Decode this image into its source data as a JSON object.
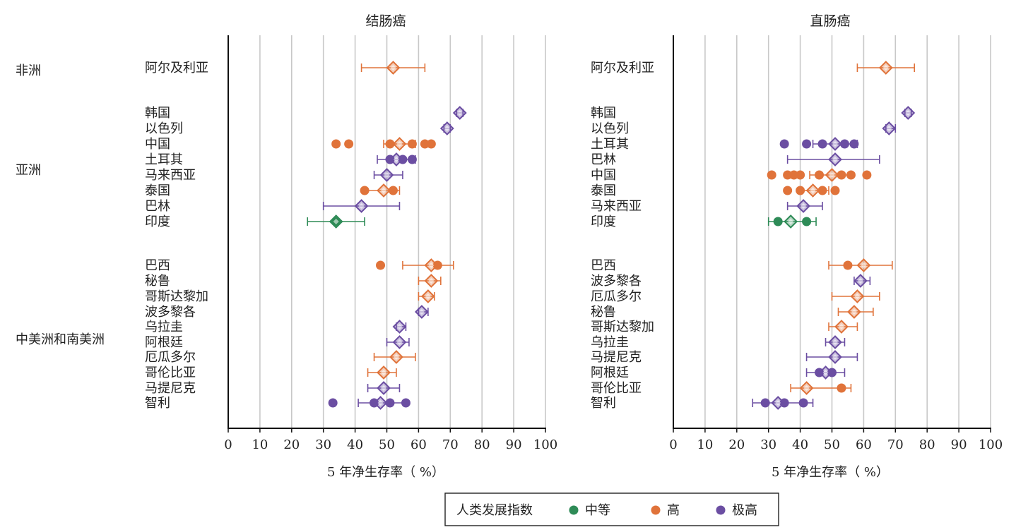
{
  "colors": {
    "中等": "#2e8b57",
    "高": "#e0733a",
    "极高": "#6b4ea2",
    "grid": "#c8c8c8",
    "axis": "#111111"
  },
  "regions": [
    "非洲",
    "亚洲",
    "中美洲和南美洲"
  ],
  "legend": {
    "title": "人类发展指数",
    "items": [
      "中等",
      "高",
      "极高"
    ]
  },
  "chart_data": [
    {
      "type": "scatter",
      "title": "结肠癌",
      "xlabel": "5 年净生存率（ %）",
      "xlim": [
        0,
        100
      ],
      "xticks": [
        0,
        10,
        20,
        30,
        40,
        50,
        60,
        70,
        80,
        90,
        100
      ],
      "rows": [
        {
          "region": "非洲",
          "label": "阿尔及利亚",
          "hdi": "高",
          "mean": 52,
          "lo": 42,
          "hi": 62,
          "dots": []
        },
        {
          "region": "亚洲",
          "label": "韩国",
          "hdi": "极高",
          "mean": 73,
          "lo": 72,
          "hi": 74,
          "dots": []
        },
        {
          "region": "亚洲",
          "label": "以色列",
          "hdi": "极高",
          "mean": 69,
          "lo": 68,
          "hi": 70,
          "dots": []
        },
        {
          "region": "亚洲",
          "label": "中国",
          "hdi": "高",
          "mean": 54,
          "lo": 49,
          "hi": 59,
          "dots": [
            34,
            38,
            51,
            58,
            62,
            64
          ]
        },
        {
          "region": "亚洲",
          "label": "土耳其",
          "hdi": "极高",
          "mean": 53,
          "lo": 47,
          "hi": 59,
          "dots": [
            51,
            55,
            58
          ]
        },
        {
          "region": "亚洲",
          "label": "马来西亚",
          "hdi": "极高",
          "mean": 50,
          "lo": 46,
          "hi": 55,
          "dots": []
        },
        {
          "region": "亚洲",
          "label": "泰国",
          "hdi": "高",
          "mean": 49,
          "lo": 43,
          "hi": 54,
          "dots": [
            43,
            52
          ]
        },
        {
          "region": "亚洲",
          "label": "巴林",
          "hdi": "极高",
          "mean": 42,
          "lo": 30,
          "hi": 54,
          "dots": []
        },
        {
          "region": "亚洲",
          "label": "印度",
          "hdi": "中等",
          "mean": 34,
          "lo": 25,
          "hi": 43,
          "dots": [
            34
          ]
        },
        {
          "region": "中美洲和南美洲",
          "label": "巴西",
          "hdi": "高",
          "mean": 64,
          "lo": 55,
          "hi": 71,
          "dots": [
            48,
            66
          ]
        },
        {
          "region": "中美洲和南美洲",
          "label": "秘鲁",
          "hdi": "高",
          "mean": 64,
          "lo": 60,
          "hi": 67,
          "dots": []
        },
        {
          "region": "中美洲和南美洲",
          "label": "哥斯达黎加",
          "hdi": "高",
          "mean": 63,
          "lo": 60,
          "hi": 65,
          "dots": []
        },
        {
          "region": "中美洲和南美洲",
          "label": "波多黎各",
          "hdi": "极高",
          "mean": 61,
          "lo": 60,
          "hi": 63,
          "dots": []
        },
        {
          "region": "中美洲和南美洲",
          "label": "乌拉圭",
          "hdi": "极高",
          "mean": 54,
          "lo": 53,
          "hi": 56,
          "dots": []
        },
        {
          "region": "中美洲和南美洲",
          "label": "阿根廷",
          "hdi": "极高",
          "mean": 54,
          "lo": 50,
          "hi": 57,
          "dots": []
        },
        {
          "region": "中美洲和南美洲",
          "label": "厄瓜多尔",
          "hdi": "高",
          "mean": 53,
          "lo": 46,
          "hi": 59,
          "dots": []
        },
        {
          "region": "中美洲和南美洲",
          "label": "哥伦比亚",
          "hdi": "高",
          "mean": 49,
          "lo": 44,
          "hi": 53,
          "dots": []
        },
        {
          "region": "中美洲和南美洲",
          "label": "马提尼克",
          "hdi": "极高",
          "mean": 49,
          "lo": 44,
          "hi": 54,
          "dots": []
        },
        {
          "region": "中美洲和南美洲",
          "label": "智利",
          "hdi": "极高",
          "mean": 48,
          "lo": 41,
          "hi": 56,
          "dots": [
            33,
            46,
            51,
            56
          ]
        }
      ]
    },
    {
      "type": "scatter",
      "title": "直肠癌",
      "xlabel": "5 年净生存率（ %）",
      "xlim": [
        0,
        100
      ],
      "xticks": [
        0,
        10,
        20,
        30,
        40,
        50,
        60,
        70,
        80,
        90,
        100
      ],
      "rows": [
        {
          "region": "非洲",
          "label": "阿尔及利亚",
          "hdi": "高",
          "mean": 67,
          "lo": 58,
          "hi": 76,
          "dots": []
        },
        {
          "region": "亚洲",
          "label": "韩国",
          "hdi": "极高",
          "mean": 74,
          "lo": 73,
          "hi": 75,
          "dots": []
        },
        {
          "region": "亚洲",
          "label": "以色列",
          "hdi": "极高",
          "mean": 68,
          "lo": 67,
          "hi": 70,
          "dots": []
        },
        {
          "region": "亚洲",
          "label": "土耳其",
          "hdi": "极高",
          "mean": 51,
          "lo": 44,
          "hi": 58,
          "dots": [
            35,
            42,
            47,
            54,
            57
          ]
        },
        {
          "region": "亚洲",
          "label": "巴林",
          "hdi": "极高",
          "mean": 51,
          "lo": 36,
          "hi": 65,
          "dots": []
        },
        {
          "region": "亚洲",
          "label": "中国",
          "hdi": "高",
          "mean": 50,
          "lo": 43,
          "hi": 56,
          "dots": [
            31,
            36,
            38,
            40,
            46,
            53,
            56,
            61
          ]
        },
        {
          "region": "亚洲",
          "label": "泰国",
          "hdi": "高",
          "mean": 44,
          "lo": 40,
          "hi": 49,
          "dots": [
            36,
            40,
            47,
            51
          ]
        },
        {
          "region": "亚洲",
          "label": "马来西亚",
          "hdi": "极高",
          "mean": 41,
          "lo": 36,
          "hi": 47,
          "dots": []
        },
        {
          "region": "亚洲",
          "label": "印度",
          "hdi": "中等",
          "mean": 37,
          "lo": 30,
          "hi": 45,
          "dots": [
            33,
            42
          ]
        },
        {
          "region": "中美洲和南美洲",
          "label": "巴西",
          "hdi": "高",
          "mean": 60,
          "lo": 49,
          "hi": 69,
          "dots": [
            55
          ]
        },
        {
          "region": "中美洲和南美洲",
          "label": "波多黎各",
          "hdi": "极高",
          "mean": 59,
          "lo": 57,
          "hi": 62,
          "dots": []
        },
        {
          "region": "中美洲和南美洲",
          "label": "厄瓜多尔",
          "hdi": "高",
          "mean": 58,
          "lo": 50,
          "hi": 65,
          "dots": []
        },
        {
          "region": "中美洲和南美洲",
          "label": "秘鲁",
          "hdi": "高",
          "mean": 57,
          "lo": 52,
          "hi": 63,
          "dots": []
        },
        {
          "region": "中美洲和南美洲",
          "label": "哥斯达黎加",
          "hdi": "高",
          "mean": 53,
          "lo": 49,
          "hi": 58,
          "dots": []
        },
        {
          "region": "中美洲和南美洲",
          "label": "乌拉圭",
          "hdi": "极高",
          "mean": 51,
          "lo": 48,
          "hi": 54,
          "dots": []
        },
        {
          "region": "中美洲和南美洲",
          "label": "马提尼克",
          "hdi": "极高",
          "mean": 51,
          "lo": 42,
          "hi": 58,
          "dots": []
        },
        {
          "region": "中美洲和南美洲",
          "label": "阿根廷",
          "hdi": "极高",
          "mean": 48,
          "lo": 42,
          "hi": 54,
          "dots": [
            46,
            50
          ]
        },
        {
          "region": "中美洲和南美洲",
          "label": "哥伦比亚",
          "hdi": "高",
          "mean": 42,
          "lo": 37,
          "hi": 56,
          "dots": [
            53
          ]
        },
        {
          "region": "中美洲和南美洲",
          "label": "智利",
          "hdi": "极高",
          "mean": 33,
          "lo": 25,
          "hi": 44,
          "dots": [
            29,
            35,
            41
          ]
        }
      ]
    }
  ]
}
